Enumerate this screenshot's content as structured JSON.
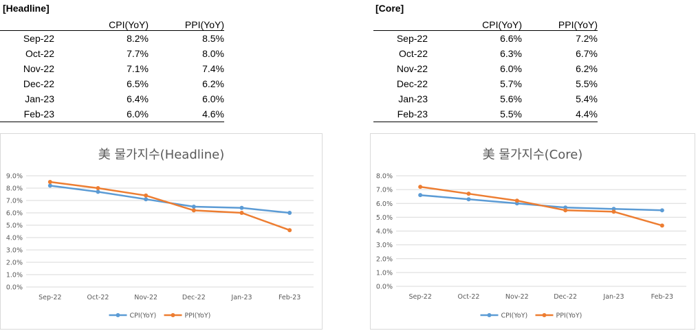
{
  "tables": [
    {
      "title": "[Headline]",
      "col_cpi": "CPI(YoY)",
      "col_ppi": "PPI(YoY)",
      "rows": [
        {
          "date": "Sep-22",
          "cpi": "8.2%",
          "ppi": "8.5%"
        },
        {
          "date": "Oct-22",
          "cpi": "7.7%",
          "ppi": "8.0%"
        },
        {
          "date": "Nov-22",
          "cpi": "7.1%",
          "ppi": "7.4%"
        },
        {
          "date": "Dec-22",
          "cpi": "6.5%",
          "ppi": "6.2%"
        },
        {
          "date": "Jan-23",
          "cpi": "6.4%",
          "ppi": "6.0%"
        },
        {
          "date": "Feb-23",
          "cpi": "6.0%",
          "ppi": "4.6%"
        }
      ]
    },
    {
      "title": "[Core]",
      "col_cpi": "CPI(YoY)",
      "col_ppi": "PPI(YoY)",
      "rows": [
        {
          "date": "Sep-22",
          "cpi": "6.6%",
          "ppi": "7.2%"
        },
        {
          "date": "Oct-22",
          "cpi": "6.3%",
          "ppi": "6.7%"
        },
        {
          "date": "Nov-22",
          "cpi": "6.0%",
          "ppi": "6.2%"
        },
        {
          "date": "Dec-22",
          "cpi": "5.7%",
          "ppi": "5.5%"
        },
        {
          "date": "Jan-23",
          "cpi": "5.6%",
          "ppi": "5.4%"
        },
        {
          "date": "Feb-23",
          "cpi": "5.5%",
          "ppi": "4.4%"
        }
      ]
    }
  ],
  "chart_data": [
    {
      "type": "line",
      "title": "美 물가지수(Headline)",
      "categories": [
        "Sep-22",
        "Oct-22",
        "Nov-22",
        "Dec-22",
        "Jan-23",
        "Feb-23"
      ],
      "series": [
        {
          "name": "CPI(YoY)",
          "color": "#5b9bd5",
          "values": [
            8.2,
            7.7,
            7.1,
            6.5,
            6.4,
            6.0
          ]
        },
        {
          "name": "PPI(YoY)",
          "color": "#ed7d31",
          "values": [
            8.5,
            8.0,
            7.4,
            6.2,
            6.0,
            4.6
          ]
        }
      ],
      "ylim": [
        0,
        9
      ],
      "ystep": 1,
      "ytick_format": "percent_1dp",
      "grid": true,
      "legend": "bottom"
    },
    {
      "type": "line",
      "title": "美 물가지수(Core)",
      "categories": [
        "Sep-22",
        "Oct-22",
        "Nov-22",
        "Dec-22",
        "Jan-23",
        "Feb-23"
      ],
      "series": [
        {
          "name": "CPI(YoY)",
          "color": "#5b9bd5",
          "values": [
            6.6,
            6.3,
            6.0,
            5.7,
            5.6,
            5.5
          ]
        },
        {
          "name": "PPI(YoY)",
          "color": "#ed7d31",
          "values": [
            7.2,
            6.7,
            6.2,
            5.5,
            5.4,
            4.4
          ]
        }
      ],
      "ylim": [
        0,
        8
      ],
      "ystep": 1,
      "ytick_format": "percent_1dp",
      "grid": true,
      "legend": "bottom"
    }
  ]
}
